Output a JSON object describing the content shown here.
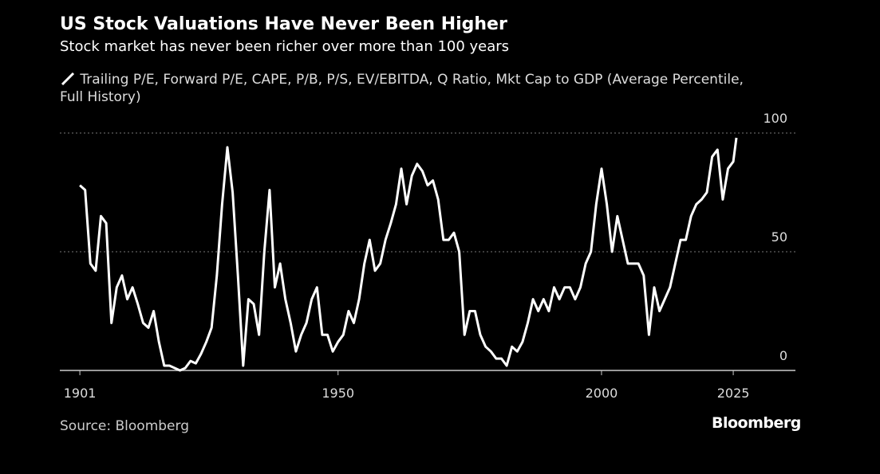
{
  "chart_data": {
    "type": "line",
    "title": "US Stock Valuations Have Never Been Higher",
    "subtitle": "Stock market has never been richer over more than 100 years",
    "source": "Source: Bloomberg",
    "brand": "Bloomberg",
    "x": [
      1901,
      1902,
      1903,
      1904,
      1905,
      1906,
      1907,
      1908,
      1909,
      1910,
      1911,
      1912,
      1913,
      1914,
      1915,
      1916,
      1917,
      1918,
      1919,
      1920,
      1921,
      1922,
      1923,
      1924,
      1925,
      1926,
      1927,
      1928,
      1929,
      1930,
      1931,
      1932,
      1933,
      1934,
      1935,
      1936,
      1937,
      1938,
      1939,
      1940,
      1941,
      1942,
      1943,
      1944,
      1945,
      1946,
      1947,
      1948,
      1949,
      1950,
      1951,
      1952,
      1953,
      1954,
      1955,
      1956,
      1957,
      1958,
      1959,
      1960,
      1961,
      1962,
      1963,
      1964,
      1965,
      1966,
      1967,
      1968,
      1969,
      1970,
      1971,
      1972,
      1973,
      1974,
      1975,
      1976,
      1977,
      1978,
      1979,
      1980,
      1981,
      1982,
      1983,
      1984,
      1985,
      1986,
      1987,
      1988,
      1989,
      1990,
      1991,
      1992,
      1993,
      1994,
      1995,
      1996,
      1997,
      1998,
      1999,
      2000,
      2001,
      2002,
      2003,
      2004,
      2005,
      2006,
      2007,
      2008,
      2009,
      2010,
      2011,
      2012,
      2013,
      2014,
      2015,
      2016,
      2017,
      2018,
      2019,
      2020,
      2021,
      2022,
      2023,
      2024,
      2025,
      2025.6
    ],
    "series": [
      {
        "name": "Trailing P/E, Forward P/E, CAPE, P/B, P/S, EV/EBITDA, Q Ratio, Mkt Cap to GDP (Average Percentile, Full History)",
        "color": "#ffffff",
        "values": [
          78,
          76,
          45,
          42,
          65,
          62,
          20,
          35,
          40,
          30,
          35,
          28,
          20,
          18,
          25,
          12,
          2,
          2,
          1,
          0,
          1,
          4,
          3,
          7,
          12,
          18,
          40,
          70,
          94,
          75,
          40,
          2,
          30,
          28,
          15,
          50,
          76,
          35,
          45,
          30,
          20,
          8,
          15,
          20,
          30,
          35,
          15,
          15,
          8,
          12,
          15,
          25,
          20,
          30,
          45,
          55,
          42,
          45,
          55,
          62,
          70,
          85,
          70,
          82,
          87,
          84,
          78,
          80,
          72,
          55,
          55,
          58,
          50,
          15,
          25,
          25,
          15,
          10,
          8,
          5,
          5,
          2,
          10,
          8,
          12,
          20,
          30,
          25,
          30,
          25,
          35,
          30,
          35,
          35,
          30,
          35,
          45,
          50,
          70,
          85,
          70,
          50,
          65,
          55,
          45,
          45,
          45,
          40,
          15,
          35,
          25,
          30,
          35,
          45,
          55,
          55,
          65,
          70,
          72,
          75,
          90,
          93,
          72,
          85,
          88,
          98
        ]
      }
    ],
    "xlim": [
      1897.2,
      2036.8
    ],
    "xticks": [
      1901,
      1950,
      2000,
      2025
    ],
    "ylim": [
      0,
      100
    ],
    "yticks": [
      0,
      50,
      100
    ],
    "grid": true
  }
}
